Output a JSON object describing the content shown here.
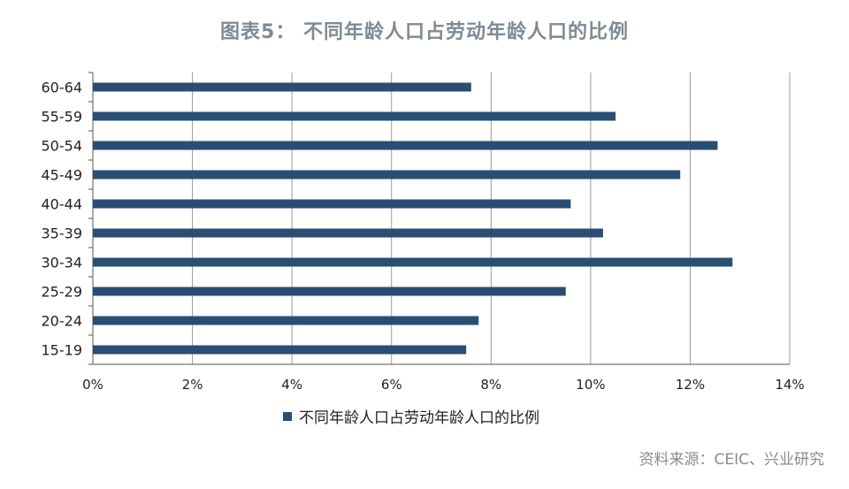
{
  "title": "图表5： 不同年龄人口占劳动年龄人口的比例",
  "source": "资料来源：CEIC、兴业研究",
  "colors": {
    "bar": "#2a4e73",
    "grid": "#9a9a9a",
    "axis": "#555555"
  },
  "chart_data": {
    "type": "bar",
    "orientation": "horizontal",
    "title": "图表5： 不同年龄人口占劳动年龄人口的比例",
    "categories": [
      "60-64",
      "55-59",
      "50-54",
      "45-49",
      "40-44",
      "35-39",
      "30-34",
      "25-29",
      "20-24",
      "15-19"
    ],
    "series": [
      {
        "name": "不同年龄人口占劳动年龄人口的比例",
        "values": [
          7.6,
          10.5,
          12.55,
          11.8,
          9.6,
          10.25,
          12.85,
          9.5,
          7.75,
          7.5
        ]
      }
    ],
    "xlim": [
      0,
      14
    ],
    "x_ticks": [
      0,
      2,
      4,
      6,
      8,
      10,
      12,
      14
    ],
    "x_tick_labels": [
      "0%",
      "2%",
      "4%",
      "6%",
      "8%",
      "10%",
      "12%",
      "14%"
    ],
    "xlabel": "",
    "ylabel": "",
    "grid": "vertical",
    "legend": "bottom"
  }
}
